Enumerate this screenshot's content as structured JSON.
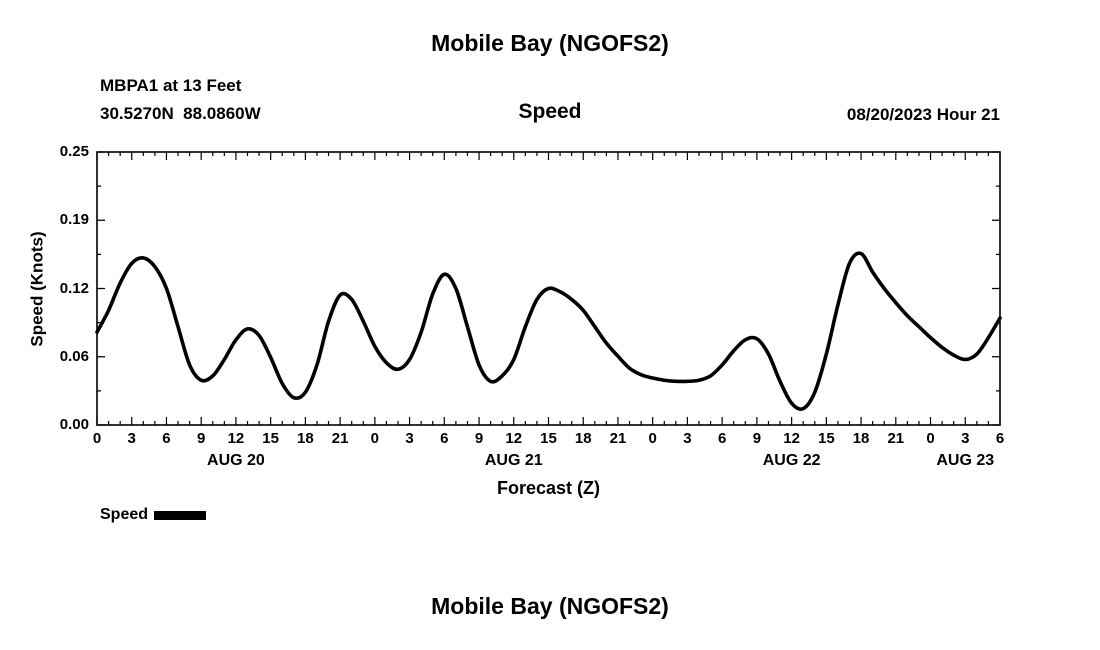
{
  "page": {
    "title": "Mobile Bay (NGOFS2)",
    "bottom_title": "Mobile Bay (NGOFS2)"
  },
  "header": {
    "station": "MBPA1 at 13 Feet",
    "coordinates": "30.5270N  88.0860W",
    "panel_title": "Speed",
    "forecast_time": "08/20/2023 Hour 21"
  },
  "chart_data": {
    "type": "line",
    "title": "Speed",
    "xlabel": "Forecast (Z)",
    "ylabel": "Speed (Knots)",
    "x_range_hours": [
      0,
      78
    ],
    "x_major_tick_step_hours": 3,
    "x_minor_tick_step_hours": 1,
    "ylim": [
      0,
      0.25
    ],
    "y_minor_tick_step": 0.03125,
    "grid": false,
    "line_color": "#000000",
    "x_tick_labels": [
      "0",
      "3",
      "6",
      "9",
      "12",
      "15",
      "18",
      "21",
      "0",
      "3",
      "6",
      "9",
      "12",
      "15",
      "18",
      "21",
      "0",
      "3",
      "6",
      "9",
      "12",
      "15",
      "18",
      "21",
      "0",
      "3",
      "6"
    ],
    "date_labels": [
      {
        "label": "AUG 20",
        "center_hour": 12
      },
      {
        "label": "AUG 21",
        "center_hour": 36
      },
      {
        "label": "AUG 22",
        "center_hour": 60
      },
      {
        "label": "AUG 23",
        "center_hour": 75
      }
    ],
    "y_ticks": [
      {
        "value": 0.0,
        "label": "0.00"
      },
      {
        "value": 0.0625,
        "label": "0.06"
      },
      {
        "value": 0.125,
        "label": "0.12"
      },
      {
        "value": 0.1875,
        "label": "0.19"
      },
      {
        "value": 0.25,
        "label": "0.25"
      }
    ],
    "legend": [
      {
        "name": "Speed",
        "color": "#000000"
      }
    ],
    "x_start_hour": 0,
    "x_step_hours": 1,
    "series": [
      {
        "name": "Speed",
        "values": [
          0.085,
          0.105,
          0.13,
          0.148,
          0.153,
          0.145,
          0.125,
          0.09,
          0.055,
          0.041,
          0.045,
          0.06,
          0.078,
          0.088,
          0.082,
          0.062,
          0.038,
          0.025,
          0.03,
          0.055,
          0.095,
          0.119,
          0.115,
          0.095,
          0.072,
          0.057,
          0.051,
          0.06,
          0.085,
          0.12,
          0.138,
          0.125,
          0.09,
          0.055,
          0.04,
          0.045,
          0.06,
          0.09,
          0.115,
          0.125,
          0.122,
          0.115,
          0.105,
          0.09,
          0.075,
          0.063,
          0.052,
          0.046,
          0.043,
          0.041,
          0.04,
          0.04,
          0.041,
          0.045,
          0.055,
          0.068,
          0.078,
          0.079,
          0.065,
          0.04,
          0.02,
          0.015,
          0.03,
          0.065,
          0.11,
          0.148,
          0.157,
          0.14,
          0.125,
          0.112,
          0.1,
          0.09,
          0.08,
          0.071,
          0.064,
          0.06,
          0.065,
          0.08,
          0.098
        ]
      }
    ]
  }
}
